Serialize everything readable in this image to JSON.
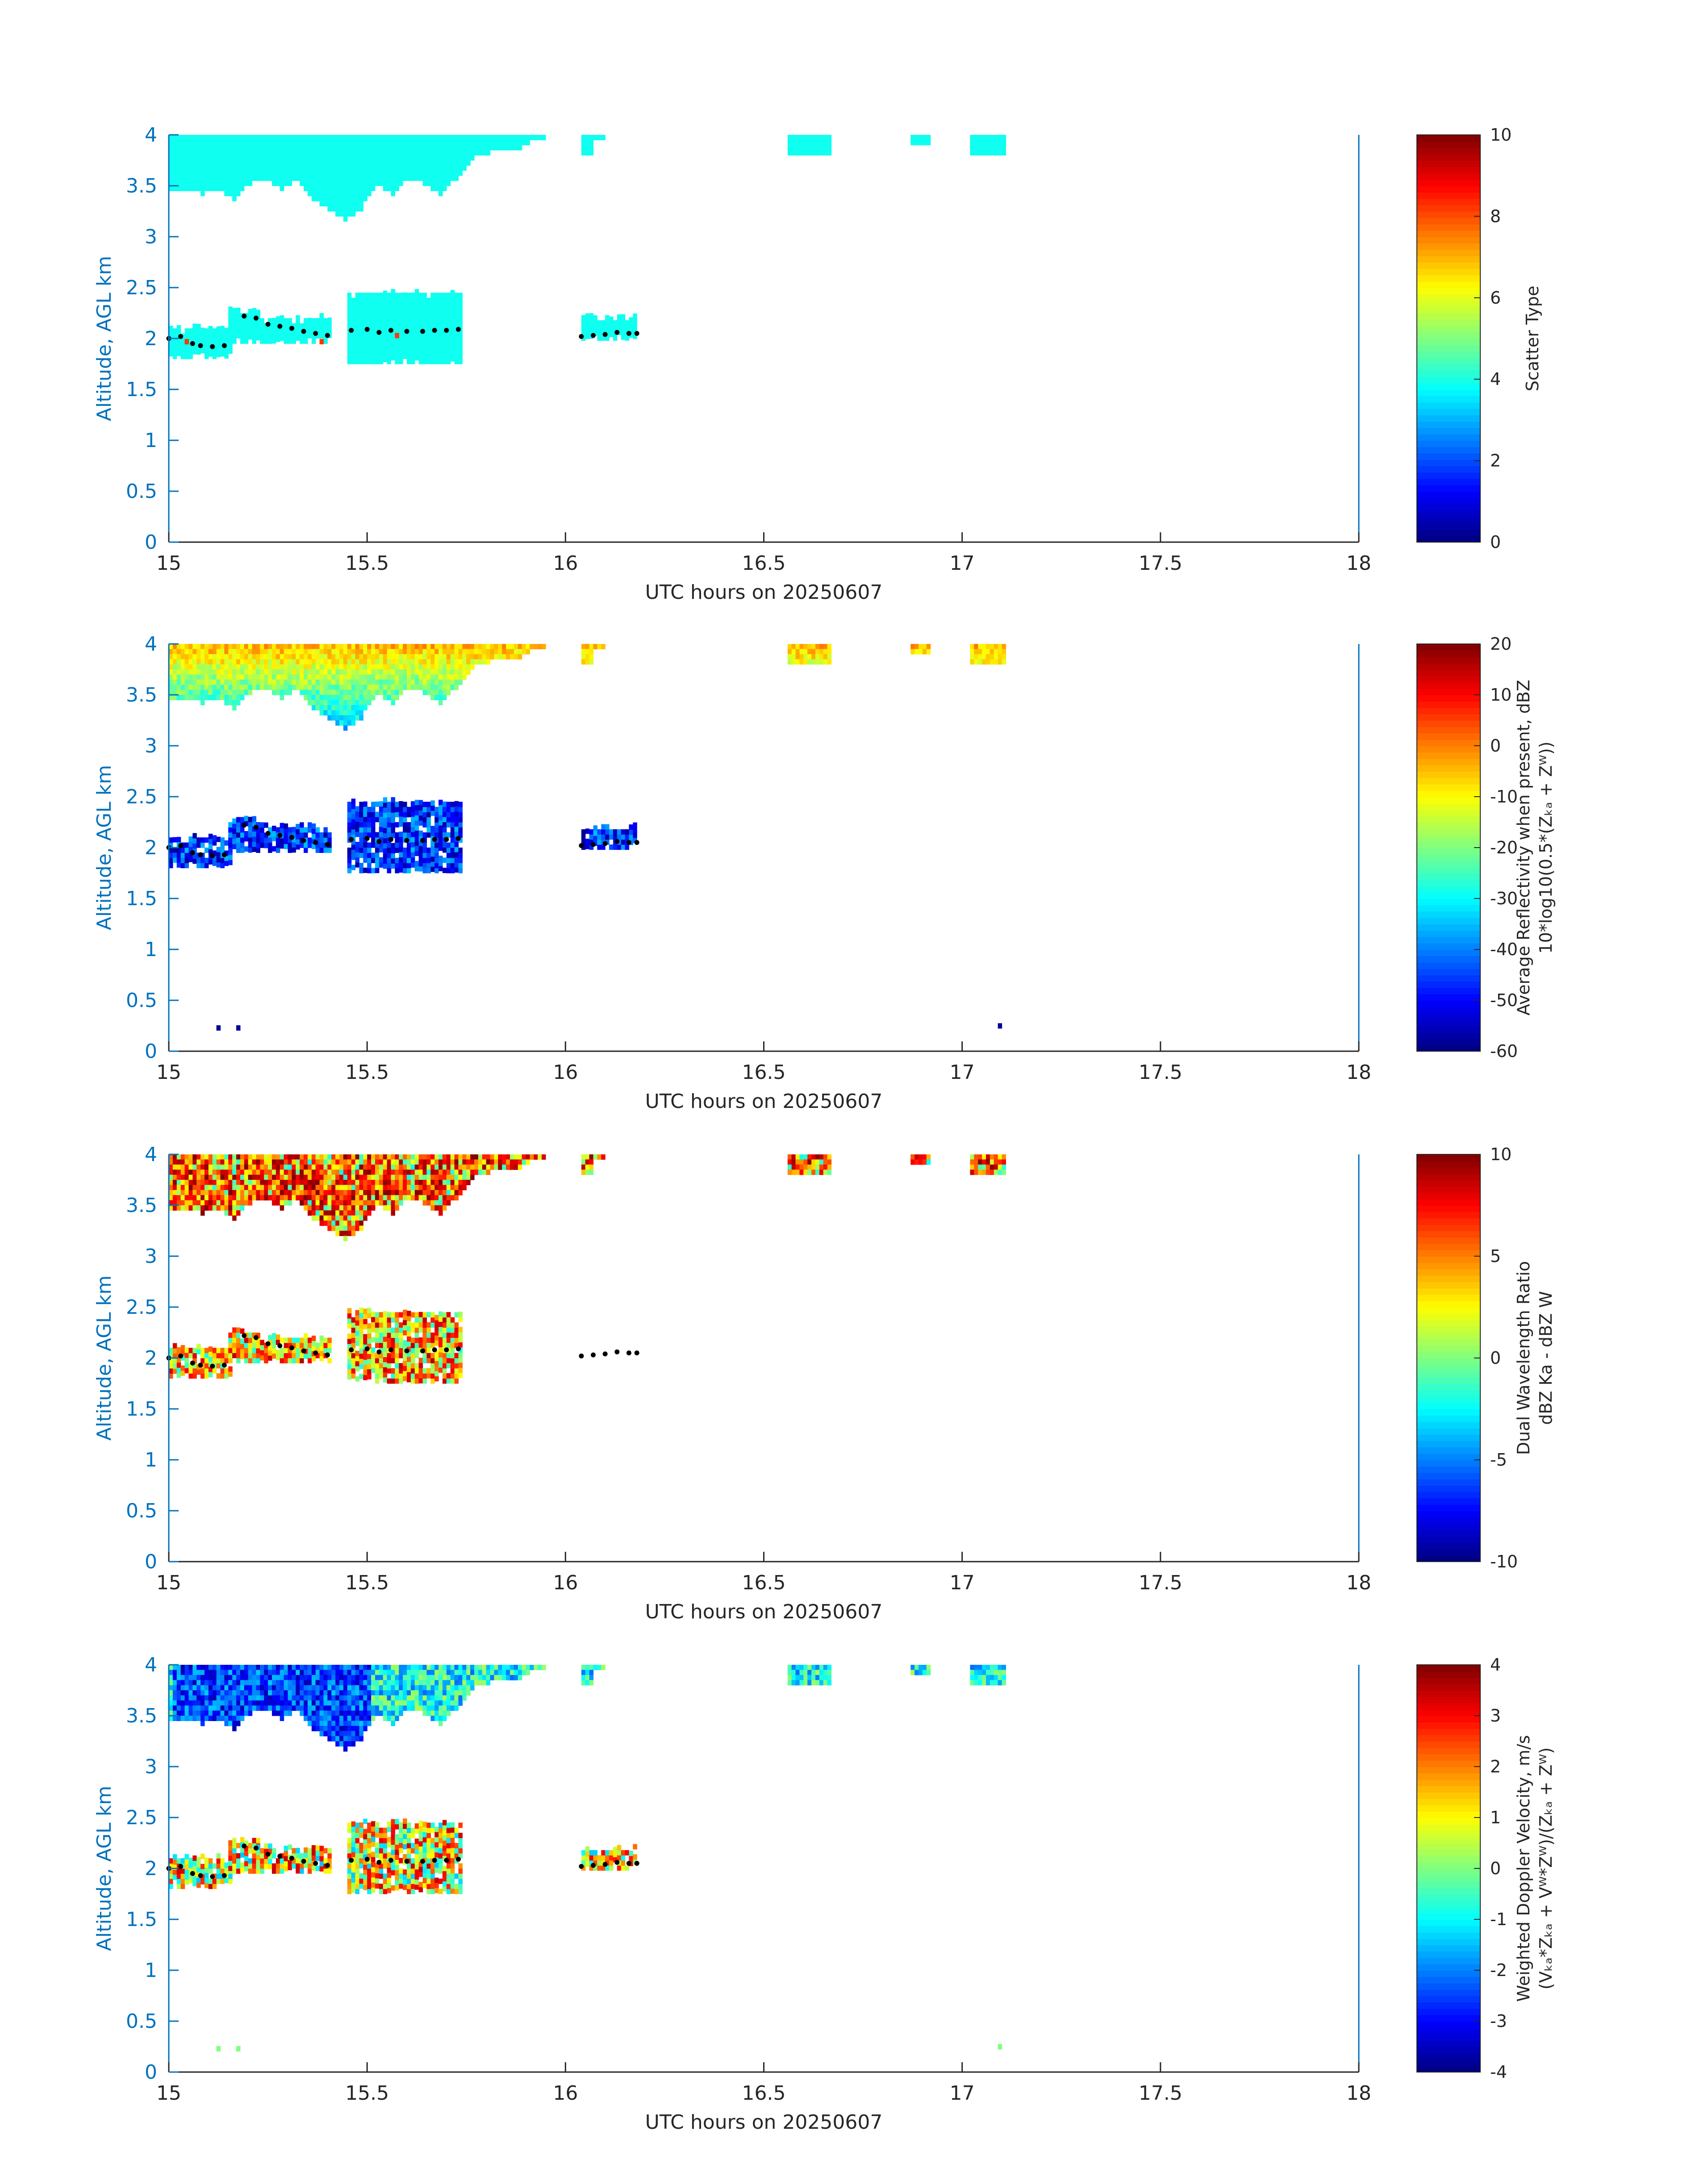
{
  "chart_data": [
    {
      "type": "heatmap",
      "panel": 1,
      "title": "",
      "xlabel": "UTC hours on 20250607",
      "ylabel": "Altitude, AGL km",
      "xlim": [
        15,
        18
      ],
      "ylim": [
        0,
        4
      ],
      "xticks": [
        "15",
        "15.5",
        "16",
        "16.5",
        "17",
        "17.5",
        "18"
      ],
      "yticks": [
        "0",
        "0.5",
        "1",
        "1.5",
        "2",
        "2.5",
        "3",
        "3.5",
        "4"
      ],
      "colorbar": {
        "label_line1": "Scatter Type",
        "label_line2": "",
        "clim": [
          0,
          10
        ],
        "ticks": [
          "0",
          "2",
          "4",
          "6",
          "8",
          "10"
        ],
        "colormap": "jet"
      },
      "cloud_value": 3.9,
      "top_layer_base_km": [
        [
          15.0,
          3.45
        ],
        [
          15.04,
          3.45
        ],
        [
          15.08,
          3.4
        ],
        [
          15.12,
          3.45
        ],
        [
          15.16,
          3.35
        ],
        [
          15.2,
          3.5
        ],
        [
          15.24,
          3.55
        ],
        [
          15.28,
          3.45
        ],
        [
          15.32,
          3.55
        ],
        [
          15.36,
          3.35
        ],
        [
          15.4,
          3.25
        ],
        [
          15.44,
          3.15
        ],
        [
          15.48,
          3.25
        ],
        [
          15.52,
          3.5
        ],
        [
          15.56,
          3.4
        ],
        [
          15.6,
          3.55
        ],
        [
          15.64,
          3.5
        ],
        [
          15.68,
          3.4
        ],
        [
          15.72,
          3.55
        ],
        [
          15.76,
          3.75
        ],
        [
          15.8,
          3.8
        ],
        [
          15.84,
          3.85
        ],
        [
          15.88,
          3.85
        ],
        [
          15.92,
          3.92
        ]
      ],
      "top_layer_extra_segments": [
        [
          16.04,
          16.07,
          3.8
        ],
        [
          16.07,
          16.1,
          3.95
        ],
        [
          16.56,
          16.67,
          3.8
        ],
        [
          16.87,
          16.92,
          3.9
        ],
        [
          17.02,
          17.11,
          3.8
        ]
      ],
      "low_layer_segments": [
        [
          15.0,
          15.15,
          1.8,
          2.1
        ],
        [
          15.15,
          15.22,
          1.95,
          2.27
        ],
        [
          15.22,
          15.4,
          1.95,
          2.2
        ],
        [
          15.45,
          15.73,
          1.75,
          2.45
        ],
        [
          16.04,
          16.18,
          1.98,
          2.2
        ]
      ],
      "marker_cells": [
        [
          15.04,
          1.97,
          8.2
        ],
        [
          15.38,
          1.97,
          8.2
        ],
        [
          15.57,
          2.03,
          8.2
        ]
      ],
      "cloud_base_points": [
        [
          15.0,
          2.0
        ],
        [
          15.03,
          2.02
        ],
        [
          15.06,
          1.95
        ],
        [
          15.08,
          1.93
        ],
        [
          15.11,
          1.92
        ],
        [
          15.14,
          1.93
        ],
        [
          15.19,
          2.22
        ],
        [
          15.22,
          2.2
        ],
        [
          15.25,
          2.14
        ],
        [
          15.28,
          2.12
        ],
        [
          15.31,
          2.1
        ],
        [
          15.34,
          2.07
        ],
        [
          15.37,
          2.05
        ],
        [
          15.4,
          2.03
        ],
        [
          15.46,
          2.08
        ],
        [
          15.5,
          2.09
        ],
        [
          15.53,
          2.06
        ],
        [
          15.56,
          2.08
        ],
        [
          15.6,
          2.07
        ],
        [
          15.64,
          2.07
        ],
        [
          15.67,
          2.08
        ],
        [
          15.7,
          2.08
        ],
        [
          15.73,
          2.09
        ],
        [
          16.04,
          2.02
        ],
        [
          16.07,
          2.03
        ],
        [
          16.1,
          2.04
        ],
        [
          16.13,
          2.06
        ],
        [
          16.16,
          2.05
        ],
        [
          16.18,
          2.05
        ]
      ]
    },
    {
      "type": "heatmap",
      "panel": 2,
      "title": "",
      "xlabel": "UTC hours on 20250607",
      "ylabel": "Altitude, AGL km",
      "xlim": [
        15,
        18
      ],
      "ylim": [
        0,
        4
      ],
      "xticks": [
        "15",
        "15.5",
        "16",
        "16.5",
        "17",
        "17.5",
        "18"
      ],
      "yticks": [
        "0",
        "0.5",
        "1",
        "1.5",
        "2",
        "2.5",
        "3",
        "3.5",
        "4"
      ],
      "colorbar": {
        "label_line1": "Average Reflectivity when present, dBZ",
        "label_line2": "10*log10(0.5*(Zₖₐ + Zᵂ))",
        "clim": [
          -60,
          20
        ],
        "ticks": [
          "-60",
          "-50",
          "-40",
          "-30",
          "-20",
          "-10",
          "0",
          "10",
          "20"
        ],
        "colormap": "jet"
      },
      "top_layer_range": [
        -45,
        -3
      ],
      "low_layer_range": [
        -58,
        -35
      ],
      "low_points": [
        [
          15.12,
          0.23,
          -58
        ],
        [
          15.17,
          0.23,
          -58
        ],
        [
          17.09,
          0.25,
          -58
        ]
      ],
      "cloud_base_points": "same_as_panel_1"
    },
    {
      "type": "heatmap",
      "panel": 3,
      "title": "",
      "xlabel": "UTC hours on 20250607",
      "ylabel": "Altitude, AGL km",
      "xlim": [
        15,
        18
      ],
      "ylim": [
        0,
        4
      ],
      "xticks": [
        "15",
        "15.5",
        "16",
        "16.5",
        "17",
        "17.5",
        "18"
      ],
      "yticks": [
        "0",
        "0.5",
        "1",
        "1.5",
        "2",
        "2.5",
        "3",
        "3.5",
        "4"
      ],
      "colorbar": {
        "label_line1": "Dual Wavelength Ratio",
        "label_line2": "dBZ Ka - dBZ W",
        "clim": [
          -10,
          10
        ],
        "ticks": [
          "-10",
          "-5",
          "0",
          "5",
          "10"
        ],
        "colormap": "jet"
      },
      "top_layer_range": [
        -3,
        10
      ],
      "low_layer_range": [
        -2,
        9
      ],
      "cloud_base_points": "same_as_panel_1"
    },
    {
      "type": "heatmap",
      "panel": 4,
      "title": "",
      "xlabel": "UTC hours on 20250607",
      "ylabel": "Altitude, AGL km",
      "xlim": [
        15,
        18
      ],
      "ylim": [
        0,
        4
      ],
      "xticks": [
        "15",
        "15.5",
        "16",
        "16.5",
        "17",
        "17.5",
        "18"
      ],
      "yticks": [
        "0",
        "0.5",
        "1",
        "1.5",
        "2",
        "2.5",
        "3",
        "3.5",
        "4"
      ],
      "colorbar": {
        "label_line1": "Weighted Doppler Velocity, m/s",
        "label_line2": "(Vₖₐ*Zₖₐ + Vᵂ*Zᵂ)/(Zₖₐ + Zᵂ)",
        "clim": [
          -4,
          4
        ],
        "ticks": [
          "-4",
          "-3",
          "-2",
          "-1",
          "0",
          "1",
          "2",
          "3",
          "4"
        ],
        "colormap": "jet"
      },
      "top_layer_range": [
        -3.6,
        0.5
      ],
      "low_layer_range": [
        -1.5,
        3.5
      ],
      "low_points": [
        [
          15.12,
          0.23,
          0.0
        ],
        [
          15.17,
          0.23,
          0.0
        ],
        [
          17.09,
          0.25,
          0.0
        ]
      ],
      "cloud_base_points": "same_as_panel_1"
    }
  ]
}
